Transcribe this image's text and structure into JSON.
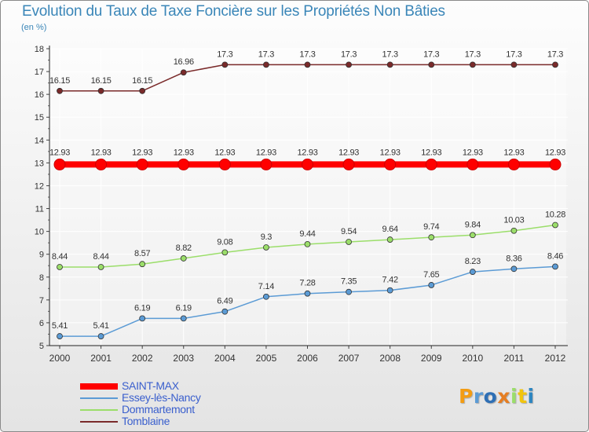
{
  "chart_data": {
    "type": "line",
    "title": "Evolution du Taux de Taxe Foncière sur les Propriétés Non Bâties",
    "subtitle": "(en %)",
    "xlabel": "",
    "ylabel": "",
    "categories": [
      "2000",
      "2001",
      "2002",
      "2003",
      "2004",
      "2005",
      "2006",
      "2007",
      "2008",
      "2009",
      "2010",
      "2011",
      "2012"
    ],
    "ylim": [
      5,
      18
    ],
    "yticks": [
      5,
      6,
      7,
      8,
      9,
      10,
      11,
      12,
      13,
      14,
      15,
      16,
      17,
      18
    ],
    "grid": true,
    "legend_position": "bottom-left",
    "series": [
      {
        "name": "SAINT-MAX",
        "color": "#ff0000",
        "values": [
          12.93,
          12.93,
          12.93,
          12.93,
          12.93,
          12.93,
          12.93,
          12.93,
          12.93,
          12.93,
          12.93,
          12.93,
          12.93
        ],
        "labels": [
          "12.93",
          "12.93",
          "12.93",
          "12.93",
          "12.93",
          "12.93",
          "12.93",
          "12.93",
          "12.93",
          "12.93",
          "12.93",
          "12.93",
          "12.93"
        ]
      },
      {
        "name": "Essey-lès-Nancy",
        "color": "#5b9bd5",
        "values": [
          5.41,
          5.41,
          6.19,
          6.19,
          6.49,
          7.14,
          7.28,
          7.35,
          7.42,
          7.65,
          8.23,
          8.36,
          8.46
        ],
        "labels": [
          "5.41",
          "5.41",
          "6.19",
          "6.19",
          "6.49",
          "7.14",
          "7.28",
          "7.35",
          "7.42",
          "7.65",
          "8.23",
          "8.36",
          "8.46"
        ]
      },
      {
        "name": "Dommartemont",
        "color": "#9bde6a",
        "values": [
          8.44,
          8.44,
          8.57,
          8.82,
          9.08,
          9.3,
          9.44,
          9.54,
          9.64,
          9.74,
          9.84,
          10.03,
          10.28
        ],
        "labels": [
          "8.44",
          "8.44",
          "8.57",
          "8.82",
          "9.08",
          "9.3",
          "9.44",
          "9.54",
          "9.64",
          "9.74",
          "9.84",
          "10.03",
          "10.28"
        ]
      },
      {
        "name": "Tomblaine",
        "color": "#7a2a2a",
        "values": [
          16.15,
          16.15,
          16.15,
          16.96,
          17.3,
          17.3,
          17.3,
          17.3,
          17.3,
          17.3,
          17.3,
          17.3,
          17.3
        ],
        "labels": [
          "16.15",
          "16.15",
          "16.15",
          "16.96",
          "17.3",
          "17.3",
          "17.3",
          "17.3",
          "17.3",
          "17.3",
          "17.3",
          "17.3",
          "17.3"
        ]
      }
    ]
  },
  "legend": {
    "items": [
      {
        "label": "SAINT-MAX",
        "color": "#ff0000"
      },
      {
        "label": "Essey-lès-Nancy",
        "color": "#5b9bd5"
      },
      {
        "label": "Dommartemont",
        "color": "#9bde6a"
      },
      {
        "label": "Tomblaine",
        "color": "#7a2a2a"
      }
    ]
  },
  "logo": {
    "text": "Proxiti",
    "letter_colors": [
      "#f39c12",
      "#5b9bd5",
      "#2e6fb5",
      "#e67e22",
      "#9bde6a",
      "#f1c40f",
      "#2e86c1"
    ]
  }
}
